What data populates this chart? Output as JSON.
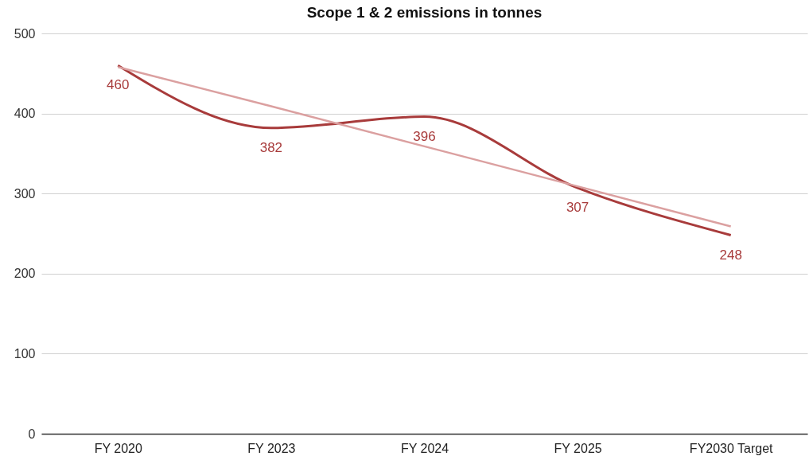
{
  "chart_data": {
    "type": "line",
    "title": "Scope 1 & 2 emissions in tonnes",
    "categories": [
      "FY 2020",
      "FY 2023",
      "FY 2024",
      "FY 2025",
      "FY2030 Target"
    ],
    "series": [
      {
        "color": "#a83b3b",
        "values": [
          460,
          382,
          396,
          307,
          248
        ],
        "value_labels": [
          "460",
          "382",
          "396",
          "307",
          "248"
        ]
      },
      {
        "type": "line",
        "color": "#dba0a0",
        "values": [
          458,
          409,
          359,
          309,
          259
        ]
      }
    ],
    "ylim": [
      0,
      500
    ],
    "yticks": [
      0,
      100,
      200,
      300,
      400,
      500
    ],
    "grid": "y",
    "marker": "none",
    "line_style": "solid"
  }
}
